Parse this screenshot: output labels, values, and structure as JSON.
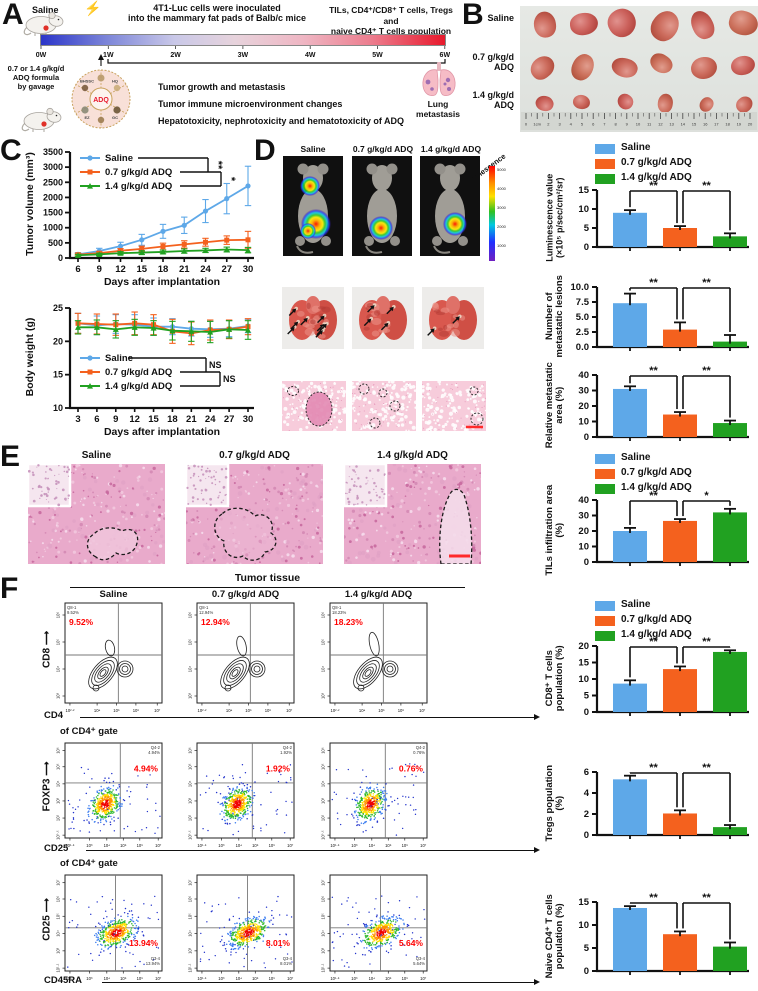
{
  "figure": {
    "panel_labels": {
      "A": "A",
      "B": "B",
      "C": "C",
      "D": "D",
      "E": "E",
      "F": "F"
    }
  },
  "colors": {
    "saline": "#5EA8E8",
    "adq_low": "#F4611E",
    "adq_high": "#21A121",
    "flow_pct": "#FF0000",
    "adq_text": "#E8192C",
    "timeline_start": "#2B35C9",
    "timeline_end": "#E8192C"
  },
  "groups": [
    "Saline",
    "0.7 g/kg/d ADQ",
    "1.4 g/kg/d ADQ"
  ],
  "icons": {
    "bolt": "⚡"
  },
  "panelA": {
    "saline_label": "Saline",
    "inoculation": "4T1-Luc cells were inoculated\ninto the mammary fat pads  of Balb/c mice",
    "tils": "TILs, CD4⁺/CD8⁺ T cells, Tregs and\nnaive CD4⁺ T cells population",
    "weeks": [
      "0W",
      "1W",
      "2W",
      "3W",
      "4W",
      "5W",
      "6W"
    ],
    "gavage": "0.7 or 1.4 g/kg/d\nADQ formula\nby gavage",
    "adq_center": "ADQ",
    "adq_segments": [
      "BHSSC",
      "HQ",
      "EZ",
      "GC"
    ],
    "outcomes": [
      "Tumor growth and metastasis",
      "Tumor immune microenvironment changes",
      "Hepatotoxicity, nephrotoxicity and hematotoxicity of ADQ"
    ],
    "lung_label": "Lung\nmetastasis"
  },
  "panelB": {
    "rows": [
      "Saline",
      "0.7 g/kg/d\nADQ",
      "1.4 g/kg/d\nADQ"
    ],
    "ruler": [
      "0",
      "1cm",
      "2",
      "3",
      "4",
      "5",
      "6",
      "7",
      "8",
      "9",
      "10",
      "11",
      "12",
      "13",
      "14",
      "15",
      "16",
      "17",
      "18",
      "19",
      "20"
    ]
  },
  "panelD": {
    "col_titles": [
      "Saline",
      "0.7 g/kg/d ADQ",
      "1.4 g/kg/d ADQ"
    ],
    "colorbar": {
      "label": "Luminescence",
      "ticks": [
        "5000",
        "4000",
        "3000",
        "2000",
        "1000"
      ]
    }
  },
  "panelE": {
    "col_titles": [
      "Saline",
      "0.7 g/kg/d ADQ",
      "1.4 g/kg/d ADQ"
    ]
  },
  "panelF": {
    "header": "Tumor tissue",
    "col_titles": [
      "Saline",
      "0.7 g/kg/d ADQ",
      "1.4 g/kg/d ADQ"
    ],
    "rows": [
      {
        "gate": "",
        "ylab": "CD8",
        "xlab": "CD4",
        "quad": "Q8-1",
        "pcts": [
          "9.52%",
          "12.94%",
          "18.23%"
        ],
        "yticks": [
          "10³",
          "10⁴",
          "10⁵",
          "10⁶"
        ],
        "xticks": [
          "10²·²",
          "10⁴",
          "10⁵",
          "10⁶",
          "10⁷"
        ]
      },
      {
        "gate": "of CD4⁺ gate",
        "ylab": "FOXP3",
        "xlab": "CD25",
        "quad": "Q4-2",
        "pcts": [
          "4.94%",
          "1.92%",
          "0.76%"
        ],
        "yticks": [
          "10⁰·⁵",
          "10²",
          "10³",
          "10⁴",
          "10⁵",
          "10⁶"
        ],
        "xticks": [
          "10¹·⁵",
          "10³",
          "10⁴",
          "10⁵",
          "10⁶",
          "10⁷"
        ]
      },
      {
        "gate": "of CD4⁺ gate",
        "ylab": "CD25",
        "xlab": "CD45RA",
        "quad": "Q3-4",
        "pcts": [
          "13.94%",
          "8.01%",
          "5.64%"
        ],
        "yticks": [
          "10¹·¹",
          "10³",
          "10⁴",
          "10⁵",
          "10⁶",
          "10⁷"
        ],
        "xticks": [
          "10¹·⁵",
          "10³",
          "10⁴",
          "10⁵",
          "10⁶",
          "10⁷"
        ]
      }
    ]
  },
  "chart_data": [
    {
      "id": "tumor_volume",
      "type": "line",
      "title": "",
      "xlabel": "Days after implantation",
      "ylabel": "Tumor volume (mm³)",
      "x": [
        6,
        9,
        12,
        15,
        18,
        21,
        24,
        27,
        30
      ],
      "ylim": [
        0,
        3500
      ],
      "yticks": [
        0,
        500,
        1000,
        1500,
        2000,
        2500,
        3000,
        3500
      ],
      "series": [
        {
          "name": "Saline",
          "values": [
            120,
            230,
            390,
            600,
            880,
            1080,
            1550,
            1960,
            2380
          ],
          "errors": [
            60,
            90,
            130,
            180,
            230,
            270,
            380,
            500,
            650
          ]
        },
        {
          "name": "0.7 g/kg/d ADQ",
          "values": [
            110,
            160,
            240,
            300,
            380,
            450,
            520,
            590,
            600
          ],
          "errors": [
            40,
            50,
            70,
            90,
            110,
            120,
            130,
            140,
            280
          ]
        },
        {
          "name": "1.4 g/kg/d ADQ",
          "values": [
            90,
            120,
            160,
            180,
            200,
            230,
            250,
            280,
            260
          ],
          "errors": [
            30,
            40,
            50,
            60,
            60,
            70,
            70,
            80,
            90
          ]
        }
      ],
      "sig": [
        {
          "between": [
            "Saline",
            "0.7 g/kg/d ADQ"
          ],
          "label": "**"
        },
        {
          "between": [
            "0.7 g/kg/d ADQ",
            "1.4 g/kg/d ADQ"
          ],
          "label": "*"
        }
      ],
      "legend_position": "top-left",
      "grid": false
    },
    {
      "id": "body_weight",
      "type": "line",
      "title": "",
      "xlabel": "Days after implantation",
      "ylabel": "Body weight (g)",
      "x": [
        3,
        6,
        9,
        12,
        15,
        18,
        21,
        24,
        27,
        30
      ],
      "ylim": [
        10,
        25
      ],
      "yticks": [
        10,
        15,
        20,
        25
      ],
      "series": [
        {
          "name": "Saline",
          "values": [
            22.7,
            22.4,
            22.6,
            22.5,
            22.2,
            22.2,
            21.9,
            21.8,
            21.9,
            22.3
          ],
          "errors": [
            1.5,
            1.4,
            1.4,
            1.5,
            1.3,
            1.2,
            1.1,
            1.2,
            1.2,
            1.0
          ]
        },
        {
          "name": "0.7 g/kg/d ADQ",
          "values": [
            22.7,
            22.6,
            22.5,
            22.7,
            22.5,
            21.5,
            21.2,
            21.7,
            21.8,
            22.2
          ],
          "errors": [
            1.5,
            1.5,
            1.6,
            1.7,
            1.5,
            1.8,
            1.7,
            1.5,
            1.4,
            1.2
          ]
        },
        {
          "name": "1.4 g/kg/d ADQ",
          "values": [
            22.1,
            22.1,
            21.8,
            22.1,
            22.0,
            21.6,
            21.5,
            21.4,
            21.8,
            21.7
          ],
          "errors": [
            1.0,
            1.1,
            1.3,
            1.2,
            1.1,
            1.4,
            1.5,
            1.6,
            1.3,
            1.4
          ]
        }
      ],
      "sig": [
        {
          "between": [
            "Saline",
            "0.7 g/kg/d ADQ"
          ],
          "label": "NS"
        },
        {
          "between": [
            "0.7 g/kg/d ADQ",
            "1.4 g/kg/d ADQ"
          ],
          "label": "NS"
        }
      ],
      "legend_position": "bottom-left",
      "grid": false
    },
    {
      "id": "luminescence",
      "type": "bar",
      "ylabel": "Luminescence value\n(×10⁵ p/sec/cm²/sr)",
      "categories": [
        "Saline",
        "0.7 g/kg/d ADQ",
        "1.4 g/kg/d ADQ"
      ],
      "values": [
        9.0,
        5.0,
        2.8
      ],
      "errors": [
        0.7,
        0.5,
        0.8
      ],
      "ylim": [
        0,
        15
      ],
      "yticks": [
        0,
        5,
        10,
        15
      ],
      "sig": [
        {
          "pair": [
            0,
            1
          ],
          "label": "**"
        },
        {
          "pair": [
            1,
            2
          ],
          "label": "**"
        }
      ]
    },
    {
      "id": "metastatic_lesions",
      "type": "bar",
      "ylabel": "Number of\nmetastatic lesions",
      "categories": [
        "Saline",
        "0.7 g/kg/d ADQ",
        "1.4 g/kg/d ADQ"
      ],
      "values": [
        7.3,
        2.9,
        0.9
      ],
      "errors": [
        1.6,
        1.2,
        1.1
      ],
      "ylim": [
        0,
        10
      ],
      "yticks": [
        "0.0",
        "2.5",
        "5.0",
        "7.5",
        "10.0"
      ],
      "sig": [
        {
          "pair": [
            0,
            1
          ],
          "label": "**"
        },
        {
          "pair": [
            1,
            2
          ],
          "label": "**"
        }
      ]
    },
    {
      "id": "relative_metastatic_area",
      "type": "bar",
      "ylabel": "Relative metastatic\narea (%)",
      "categories": [
        "Saline",
        "0.7 g/kg/d ADQ",
        "1.4 g/kg/d ADQ"
      ],
      "values": [
        31,
        14.5,
        9
      ],
      "errors": [
        1.7,
        1.6,
        1.6
      ],
      "ylim": [
        0,
        40
      ],
      "yticks": [
        0,
        10,
        20,
        30,
        40
      ],
      "sig": [
        {
          "pair": [
            0,
            1
          ],
          "label": "**"
        },
        {
          "pair": [
            1,
            2
          ],
          "label": "**"
        }
      ]
    },
    {
      "id": "tils_infiltration",
      "type": "bar",
      "ylabel": "TILs infiltration area\n(%)",
      "categories": [
        "Saline",
        "0.7 g/kg/d ADQ",
        "1.4 g/kg/d ADQ"
      ],
      "values": [
        20,
        26.5,
        32
      ],
      "errors": [
        2.0,
        1.2,
        2.3
      ],
      "ylim": [
        0,
        40
      ],
      "yticks": [
        0,
        10,
        20,
        30,
        40
      ],
      "sig": [
        {
          "pair": [
            0,
            1
          ],
          "label": "**"
        },
        {
          "pair": [
            1,
            2
          ],
          "label": "*"
        }
      ]
    },
    {
      "id": "cd8_population",
      "type": "bar",
      "ylabel": "CD8⁺ T cells\npopulation (%)",
      "categories": [
        "Saline",
        "0.7 g/kg/d ADQ",
        "1.4 g/kg/d ADQ"
      ],
      "values": [
        8.6,
        13.0,
        18.2
      ],
      "errors": [
        1.0,
        0.8,
        0.5
      ],
      "ylim": [
        0,
        20
      ],
      "yticks": [
        0,
        5,
        10,
        15,
        20
      ],
      "sig": [
        {
          "pair": [
            0,
            1
          ],
          "label": "**"
        },
        {
          "pair": [
            1,
            2
          ],
          "label": "**"
        }
      ]
    },
    {
      "id": "tregs_population",
      "type": "bar",
      "ylabel": "Tregs population\n(%)",
      "categories": [
        "Saline",
        "0.7 g/kg/d ADQ",
        "1.4 g/kg/d ADQ"
      ],
      "values": [
        5.3,
        2.05,
        0.75
      ],
      "errors": [
        0.35,
        0.3,
        0.2
      ],
      "ylim": [
        0,
        6
      ],
      "yticks": [
        0,
        2,
        4,
        6
      ],
      "sig": [
        {
          "pair": [
            0,
            1
          ],
          "label": "**"
        },
        {
          "pair": [
            1,
            2
          ],
          "label": "**"
        }
      ]
    },
    {
      "id": "naive_cd4_population",
      "type": "bar",
      "ylabel": "Naive CD4⁺ T cells\npopulation (%)",
      "categories": [
        "Saline",
        "0.7 g/kg/d ADQ",
        "1.4 g/kg/d ADQ"
      ],
      "values": [
        13.7,
        8.0,
        5.3
      ],
      "errors": [
        0.4,
        0.6,
        0.9
      ],
      "ylim": [
        0,
        15
      ],
      "yticks": [
        0,
        5,
        10,
        15
      ],
      "sig": [
        {
          "pair": [
            0,
            1
          ],
          "label": "**"
        },
        {
          "pair": [
            1,
            2
          ],
          "label": "**"
        }
      ]
    }
  ]
}
